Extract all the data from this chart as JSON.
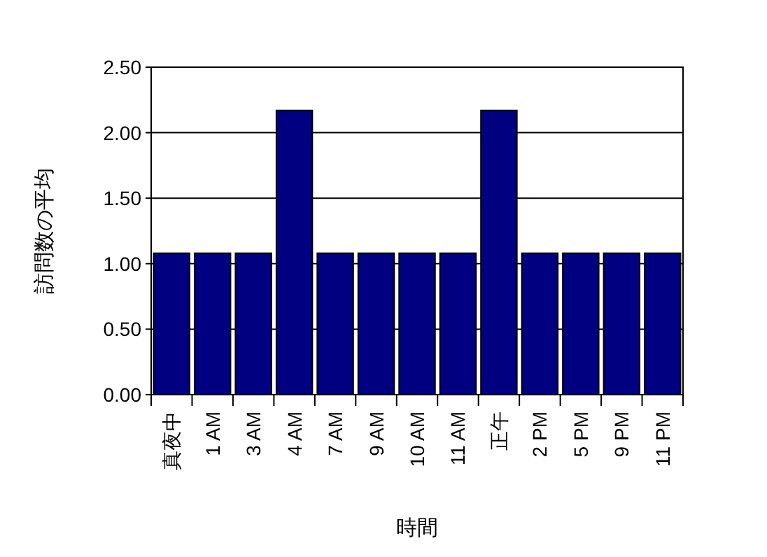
{
  "chart_data": {
    "type": "bar",
    "xlabel": "時間",
    "ylabel": "訪問数の平均",
    "categories": [
      "真夜中",
      "1 AM",
      "3 AM",
      "4 AM",
      "7 AM",
      "9 AM",
      "10 AM",
      "11 AM",
      "正午",
      "2 PM",
      "5 PM",
      "9 PM",
      "11 PM"
    ],
    "values": [
      1.08,
      1.08,
      1.08,
      2.17,
      1.08,
      1.08,
      1.08,
      1.08,
      2.17,
      1.08,
      1.08,
      1.08,
      1.08
    ],
    "color": "#000080",
    "ylim": [
      0,
      2.5
    ],
    "yticks": [
      {
        "value": 0,
        "label": "0.00"
      },
      {
        "value": 0.5,
        "label": "0.50"
      },
      {
        "value": 1,
        "label": "1.00"
      },
      {
        "value": 1.5,
        "label": "1.50"
      },
      {
        "value": 2,
        "label": "2.00"
      },
      {
        "value": 2.5,
        "label": "2.50"
      }
    ],
    "grid": "y"
  }
}
